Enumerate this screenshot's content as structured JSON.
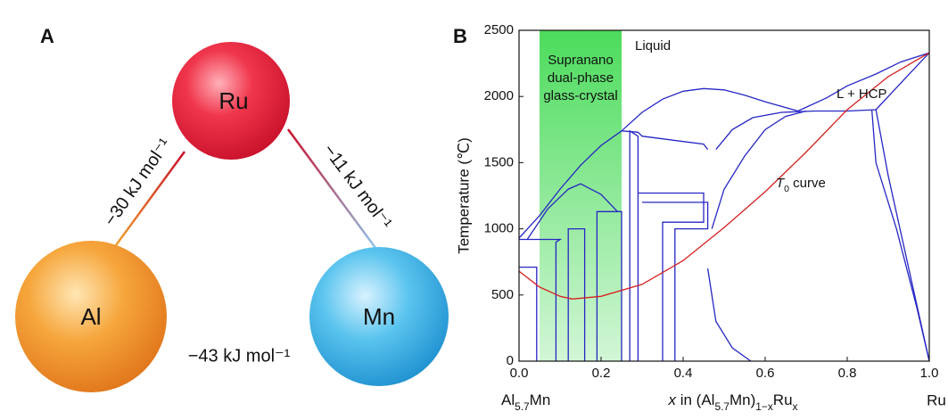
{
  "panel_a": {
    "label": "A",
    "nodes": [
      {
        "label": "Ru"
      },
      {
        "label": "Al"
      },
      {
        "label": "Mn"
      }
    ],
    "edges": [
      {
        "label": "−30 kJ mol⁻¹"
      },
      {
        "label": "−11 kJ mol⁻¹"
      },
      {
        "label": "−43 kJ mol⁻¹"
      }
    ]
  },
  "chart_data": {
    "type": "line",
    "panel_label": "B",
    "ylabel": "Temperature (℃)",
    "xlabel": [
      {
        "text": "x",
        "style": "italic"
      },
      {
        "text": " in (Al"
      },
      {
        "text": "5.7",
        "style": "sub"
      },
      {
        "text": "Mn)"
      },
      {
        "text": "1−x",
        "style": "sub"
      },
      {
        "text": "Ru"
      },
      {
        "text": "x",
        "style": "sub"
      }
    ],
    "left_end_label": [
      {
        "text": "Al"
      },
      {
        "text": "5.7",
        "style": "sub"
      },
      {
        "text": "Mn"
      }
    ],
    "right_end_label": "Ru",
    "xlim": [
      0,
      1
    ],
    "ylim": [
      0,
      2500
    ],
    "xticks": [
      {
        "value": 0,
        "label": "0.0"
      },
      0.2,
      0.4,
      0.6,
      0.8,
      {
        "value": 1,
        "label": "1.0"
      }
    ],
    "yticks": [
      0,
      500,
      1000,
      1500,
      2000,
      2500
    ],
    "region": {
      "x": [
        0.05,
        0.25
      ],
      "color": "#4cdc5c",
      "label": [
        "Supranano",
        "dual-phase",
        "glass-crystal"
      ]
    },
    "annotations": [
      "Liquid",
      "L + HCP"
    ],
    "t0_label": [
      {
        "text": "T",
        "style": "italic"
      },
      {
        "text": "0",
        "style": "sub"
      },
      {
        "text": " curve"
      }
    ],
    "series": [
      {
        "color": "#2626c4",
        "x": [
          0,
          0.05,
          0.1,
          0.15,
          0.2,
          0.25
        ],
        "values": [
          930,
          1100,
          1300,
          1480,
          1630,
          1740
        ]
      },
      {
        "color": "#2626c4",
        "x": [
          0.25,
          0.3,
          0.35,
          0.4,
          0.45,
          0.5,
          0.55,
          0.6,
          0.68
        ],
        "values": [
          1740,
          1880,
          1980,
          2040,
          2060,
          2050,
          2010,
          1960,
          1890
        ]
      },
      {
        "color": "#2626c4",
        "x": [
          0.68,
          0.75,
          0.8,
          0.87,
          0.93,
          1.0
        ],
        "values": [
          1890,
          1990,
          2080,
          2170,
          2260,
          2330
        ]
      },
      {
        "color": "#2626c4",
        "x": [
          0.87,
          0.93,
          1.0
        ],
        "values": [
          1900,
          2100,
          2330
        ]
      },
      {
        "color": "#2626c4",
        "x": [
          0.48,
          0.52,
          0.57,
          0.64,
          0.72,
          0.8,
          0.87
        ],
        "values": [
          1600,
          1750,
          1840,
          1880,
          1890,
          1890,
          1900
        ]
      },
      {
        "color": "#2626c4",
        "x": [
          0.87,
          0.9,
          0.95,
          1.0
        ],
        "values": [
          1900,
          1400,
          700,
          0
        ]
      },
      {
        "color": "#2626c4",
        "x": [
          0.46,
          0.48,
          0.52,
          0.565
        ],
        "values": [
          700,
          300,
          100,
          0
        ]
      },
      {
        "color": "#2626c4",
        "x": [
          0.47,
          0.5,
          0.55,
          0.6,
          0.65,
          0.7
        ],
        "values": [
          1000,
          1300,
          1550,
          1750,
          1850,
          1890
        ]
      },
      {
        "color": "#2626c4",
        "x": [
          0.02,
          0.07,
          0.12,
          0.15,
          0.2,
          0.24
        ],
        "values": [
          920,
          1150,
          1300,
          1340,
          1260,
          1130
        ]
      },
      {
        "color": "#2626c4",
        "x": [
          0.25,
          0.29,
          0.3,
          0.35,
          0.4,
          0.45,
          0.46
        ],
        "values": [
          1740,
          1730,
          1700,
          1680,
          1660,
          1640,
          1600
        ]
      },
      {
        "color": "#2626c4",
        "x": [
          0,
          0.043,
          0.043,
          0.043
        ],
        "values": [
          710,
          710,
          0,
          710
        ]
      },
      {
        "color": "#2626c4",
        "x": [
          0,
          0.1,
          0.09,
          0.09
        ],
        "values": [
          920,
          920,
          900,
          0
        ]
      },
      {
        "color": "#2626c4",
        "x": [
          0.12,
          0.12,
          0.16,
          0.16
        ],
        "values": [
          0,
          1000,
          1000,
          0
        ]
      },
      {
        "color": "#2626c4",
        "x": [
          0.19,
          0.19,
          0.25,
          0.25
        ],
        "values": [
          0,
          1130,
          1130,
          0
        ]
      },
      {
        "color": "#2626c4",
        "x": [
          0.27,
          0.27,
          0.29,
          0.29
        ],
        "values": [
          0,
          1740,
          1700,
          0
        ]
      },
      {
        "color": "#2626c4",
        "x": [
          0.29,
          0.45,
          0.45,
          0.35,
          0.35
        ],
        "values": [
          1270,
          1270,
          1050,
          1050,
          0
        ]
      },
      {
        "color": "#2626c4",
        "x": [
          0.3,
          0.46,
          0.46,
          0.38,
          0.38
        ],
        "values": [
          1200,
          1200,
          1000,
          1000,
          0
        ]
      },
      {
        "color": "#2626c4",
        "x": [
          0.86,
          0.87,
          0.92,
          0.97,
          1.0
        ],
        "values": [
          1900,
          1500,
          1000,
          400,
          0
        ]
      },
      {
        "color": "#d42020",
        "x": [
          0,
          0.05,
          0.1,
          0.13,
          0.2,
          0.3,
          0.4,
          0.5,
          0.6,
          0.7,
          0.8,
          0.9,
          1.0
        ],
        "values": [
          680,
          560,
          490,
          470,
          490,
          580,
          760,
          1010,
          1280,
          1580,
          1900,
          2150,
          2330
        ]
      }
    ]
  }
}
